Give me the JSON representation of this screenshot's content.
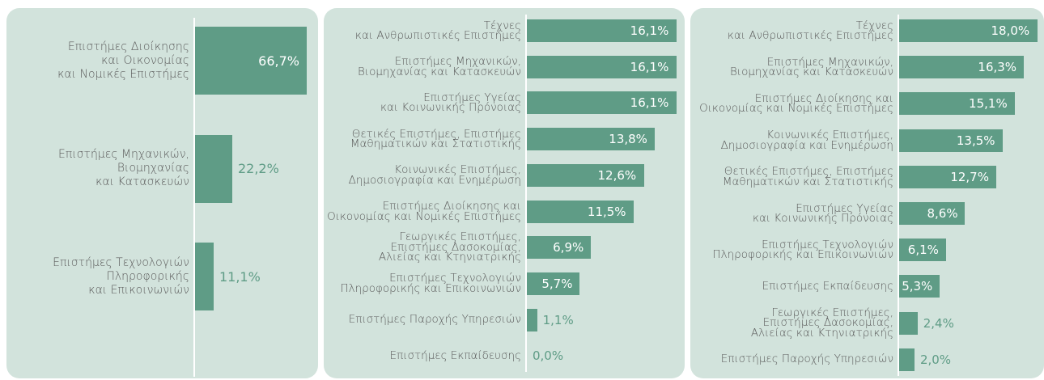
{
  "chart_data": [
    {
      "type": "bar",
      "orientation": "horizontal",
      "color": "#5f9c86",
      "xlim": [
        0,
        70
      ],
      "categories": [
        "Επιστήμες Διοίκησης\nκαι Οικονομίας\nκαι Νομικές Επιστήμες",
        "Επιστήμες Μηχανικών,\nΒιομηχανίας\nκαι Κατασκευών",
        "Επιστήμες Τεχνολογιών\nΠληροφορικής\nκαι Επικοινωνιών"
      ],
      "values": [
        66.7,
        22.2,
        11.1
      ],
      "value_labels": [
        "66,7%",
        "22,2%",
        "11,1%"
      ]
    },
    {
      "type": "bar",
      "orientation": "horizontal",
      "color": "#5f9c86",
      "xlim": [
        0,
        17
      ],
      "categories": [
        "Τέχνες\nκαι Ανθρωπιστικές Επιστήμες",
        "Επιστήμες Μηχανικών,\nΒιομηχανίας και Κατασκευών",
        "Επιστήμες Υγείας\nκαι Κοινωνικής Πρόνοιας",
        "Θετικές Επιστήμες, Επιστήμες\nΜαθηματικών και Στατιστικής",
        "Κοινωνικές Επιστήμες,\nΔημοσιογραφία και Ενημέρωση",
        "Επιστήμες Διοίκησης και\nΟικονομίας και Νομικές Επιστήμες",
        "Γεωργικές Επιστήμες,\nΕπιστήμες Δασοκομίας,\nΑλιείας και Κτηνιατρικής",
        "Επιστήμες Τεχνολογιών\nΠληροφορικής και Επικοινωνιών",
        "Επιστήμες Παροχής Υπηρεσιών",
        "Επιστήμες Εκπαίδευσης"
      ],
      "values": [
        16.1,
        16.1,
        16.1,
        13.8,
        12.6,
        11.5,
        6.9,
        5.7,
        1.1,
        0.0
      ],
      "value_labels": [
        "16,1%",
        "16,1%",
        "16,1%",
        "13,8%",
        "12,6%",
        "11,5%",
        "6,9%",
        "5,7%",
        "1,1%",
        "0,0%"
      ]
    },
    {
      "type": "bar",
      "orientation": "horizontal",
      "color": "#5f9c86",
      "xlim": [
        0,
        19
      ],
      "categories": [
        "Τέχνες\nκαι Ανθρωπιστικές Επιστήμες",
        "Επιστήμες Μηχανικών,\nΒιομηχανίας και Κατασκευών",
        "Επιστήμες Διοίκησης και\nΟικονομίας και Νομικές Επιστήμες",
        "Κοινωνικές Επιστήμες,\nΔημοσιογραφία και Ενημέρωση",
        "Θετικές Επιστήμες, Επιστήμες\nΜαθηματικών και Στατιστικής",
        "Επιστήμες Υγείας\nκαι Κοινωνικής Πρόνοιας",
        "Επιστήμες Τεχνολογιών\nΠληροφορικής και Επικοινωνιών",
        "Επιστήμες Εκπαίδευσης",
        "Γεωργικές Επιστήμες,\nΕπιστήμες Δασοκομίας,\nΑλιείας και Κτηνιατρικής",
        "Επιστήμες Παροχής Υπηρεσιών"
      ],
      "values": [
        18.0,
        16.3,
        15.1,
        13.5,
        12.7,
        8.6,
        6.1,
        5.3,
        2.4,
        2.0
      ],
      "value_labels": [
        "18,0%",
        "16,3%",
        "15,1%",
        "13,5%",
        "12,7%",
        "8,6%",
        "6,1%",
        "5,3%",
        "2,4%",
        "2,0%"
      ]
    }
  ]
}
